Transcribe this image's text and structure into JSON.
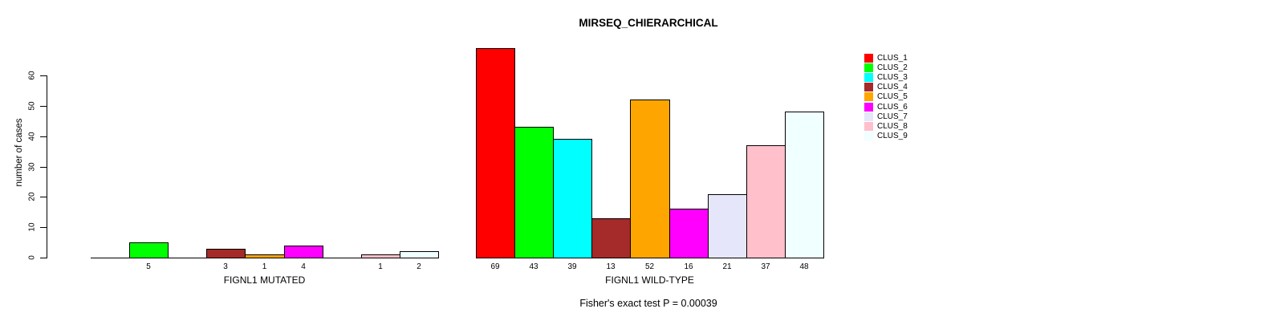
{
  "chart_data": {
    "type": "bar",
    "title": "MIRSEQ_CHIERARCHICAL",
    "ylabel": "number of cases",
    "ylim": [
      0,
      69
    ],
    "yticks": [
      0,
      10,
      20,
      30,
      40,
      50,
      60
    ],
    "grid": false,
    "legend_position": "right",
    "legend": [
      {
        "name": "CLUS_1",
        "color": "#FF0000"
      },
      {
        "name": "CLUS_2",
        "color": "#00FF00"
      },
      {
        "name": "CLUS_3",
        "color": "#00FFFF"
      },
      {
        "name": "CLUS_4",
        "color": "#A52A2A"
      },
      {
        "name": "CLUS_5",
        "color": "#FFA500"
      },
      {
        "name": "CLUS_6",
        "color": "#FF00FF"
      },
      {
        "name": "CLUS_7",
        "color": "#E6E6FA"
      },
      {
        "name": "CLUS_8",
        "color": "#FFC0CB"
      },
      {
        "name": "CLUS_9",
        "color": "#F0FFFF"
      }
    ],
    "groups": [
      {
        "label": "FIGNL1 MUTATED",
        "values": [
          0,
          5,
          0,
          3,
          1,
          4,
          0,
          1,
          2
        ]
      },
      {
        "label": "FIGNL1 WILD-TYPE",
        "values": [
          69,
          43,
          39,
          13,
          52,
          16,
          21,
          37,
          48
        ]
      }
    ],
    "annotation": "Fisher's exact test P = 0.00039",
    "colors": {
      "axis": "#000000",
      "bar_border": "#000000",
      "background": "#FFFFFF"
    }
  }
}
